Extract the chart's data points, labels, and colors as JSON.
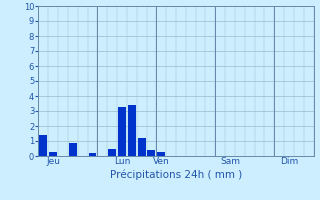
{
  "bar_color": "#0033cc",
  "bg_color": "#cceeff",
  "grid_color": "#99bbcc",
  "axis_color": "#6688aa",
  "text_color": "#2255aa",
  "ylim": [
    0,
    10
  ],
  "yticks": [
    0,
    1,
    2,
    3,
    4,
    5,
    6,
    7,
    8,
    9,
    10
  ],
  "bar_positions": [
    0,
    1,
    3,
    5,
    7,
    8,
    9,
    10,
    11,
    12
  ],
  "bar_heights": [
    1.4,
    0.3,
    0.9,
    0.2,
    0.5,
    3.3,
    3.4,
    1.2,
    0.4,
    0.3
  ],
  "day_labels": [
    "Jeu",
    "Lun",
    "Ven",
    "Sam",
    "Dim"
  ],
  "day_tick_positions": [
    1,
    8,
    12,
    19,
    25
  ],
  "day_boundary_positions": [
    -0.5,
    5.5,
    11.5,
    17.5,
    23.5,
    27.5
  ],
  "total_bars": 28,
  "xlabel": "Précipitations 24h ( mm )"
}
